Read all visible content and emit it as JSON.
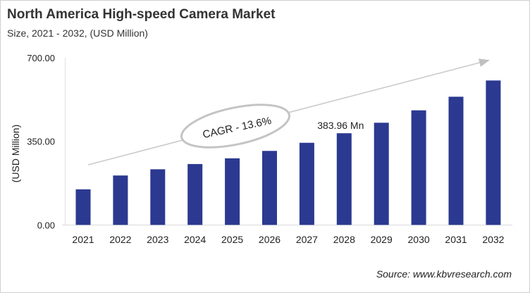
{
  "chart_data": {
    "type": "bar",
    "title": "North America High-speed Camera Market",
    "subtitle": "Size, 2021 - 2032, (USD Million)",
    "ylabel": "(USD Million)",
    "xlabel": "",
    "ylim": [
      0,
      700
    ],
    "yticks": [
      "0.00",
      "350.00",
      "700.00"
    ],
    "categories": [
      "2021",
      "2022",
      "2023",
      "2024",
      "2025",
      "2026",
      "2027",
      "2028",
      "2029",
      "2030",
      "2031",
      "2032"
    ],
    "values": [
      149,
      207,
      233,
      255,
      279,
      310,
      344,
      383.96,
      428,
      480,
      537,
      605
    ],
    "bar_color": "#2b3990",
    "grid": false,
    "annotations": {
      "data_label": {
        "category": "2028",
        "text": "383.96 Mn"
      },
      "cagr": "CAGR - 13.6%"
    },
    "source": "Source: www.kbvresearch.com"
  }
}
